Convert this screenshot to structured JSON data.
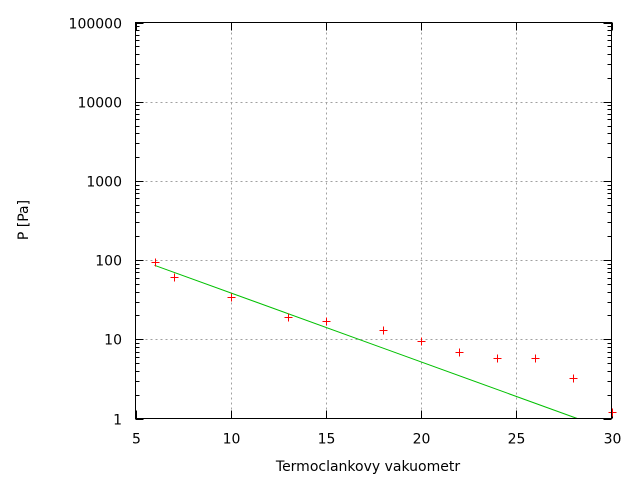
{
  "chart_data": {
    "type": "scatter",
    "title": "",
    "xlabel": "Termoclankovy vakuometr",
    "ylabel": "P [Pa]",
    "xlim": [
      5,
      30
    ],
    "ylim": [
      1,
      100000
    ],
    "yscale": "log",
    "grid": true,
    "x_ticks": [
      "5",
      "10",
      "15",
      "20",
      "25",
      "30"
    ],
    "y_ticks": [
      "1",
      "10",
      "100",
      "1000",
      "10000",
      "100000"
    ],
    "points": {
      "marker": "+",
      "color": "#ff0000",
      "x": [
        6,
        7,
        10,
        13,
        15,
        18,
        20,
        22,
        24,
        26,
        28,
        30
      ],
      "y": [
        94,
        62,
        34,
        19,
        17,
        13,
        9.6,
        7,
        5.8,
        5.8,
        3.2,
        1.2
      ]
    },
    "fit_line": {
      "color": "#00c000",
      "x": [
        6,
        28.2
      ],
      "y": [
        86,
        1
      ]
    }
  }
}
